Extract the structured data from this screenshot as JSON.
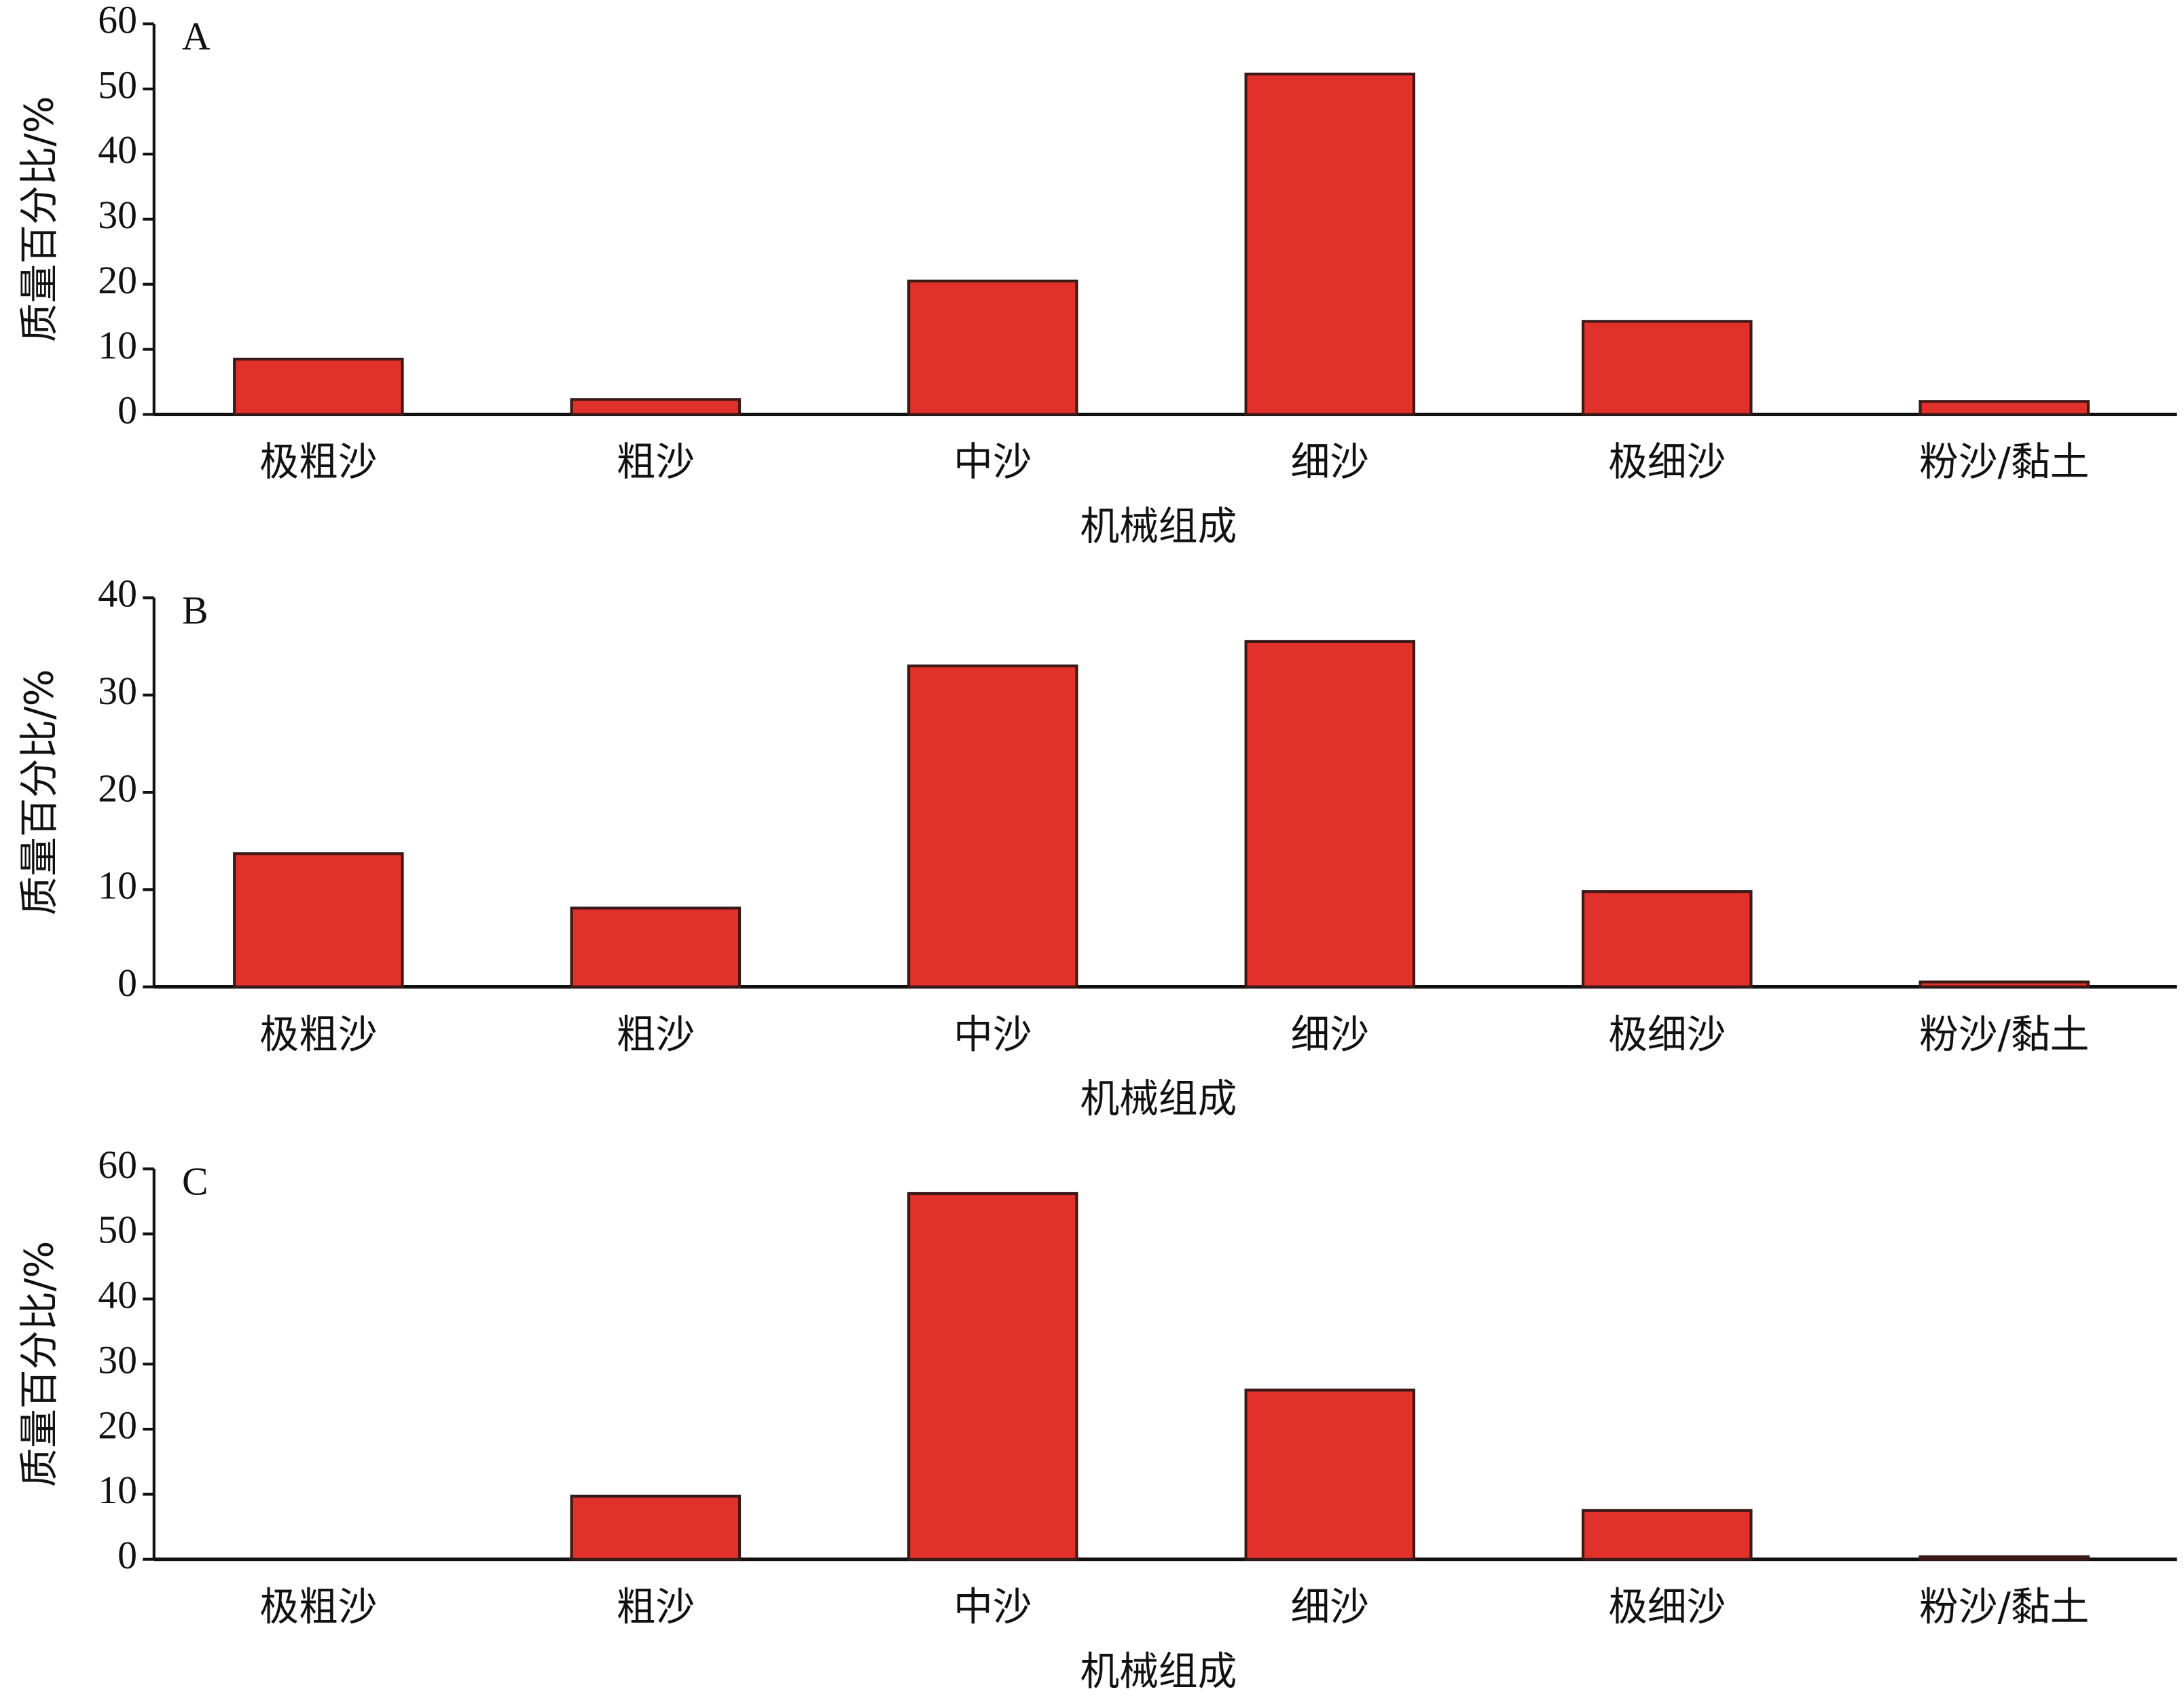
{
  "chart_data": [
    {
      "type": "bar",
      "title": "A",
      "x_label": "机械组成",
      "y_label": "质量百分比/%",
      "categories": [
        "极粗沙",
        "粗沙",
        "中沙",
        "细沙",
        "极细沙",
        "粉沙/黏土"
      ],
      "values": [
        8.5,
        2.3,
        20.5,
        52.3,
        14.3,
        2.0
      ],
      "color": "#e2302a",
      "ylim": [
        0,
        60
      ],
      "yticks": [
        0,
        10,
        20,
        30,
        40,
        50,
        60
      ]
    },
    {
      "type": "bar",
      "title": "B",
      "x_label": "机械组成",
      "y_label": "质量百分比/%",
      "categories": [
        "极粗沙",
        "粗沙",
        "中沙",
        "细沙",
        "极细沙",
        "粉沙/黏土"
      ],
      "values": [
        13.7,
        8.1,
        33.0,
        35.5,
        9.8,
        0.5
      ],
      "color": "#e2302a",
      "ylim": [
        0,
        40
      ],
      "yticks": [
        0,
        10,
        20,
        30,
        40
      ]
    },
    {
      "type": "bar",
      "title": "C",
      "x_label": "机械组成",
      "y_label": "质量百分比/%",
      "categories": [
        "极粗沙",
        "粗沙",
        "中沙",
        "细沙",
        "极细沙",
        "粉沙/黏土"
      ],
      "values": [
        0,
        9.7,
        56.2,
        26.0,
        7.5,
        0.4
      ],
      "color": "#e2302a",
      "ylim": [
        0,
        60
      ],
      "yticks": [
        0,
        10,
        20,
        30,
        40,
        50,
        60
      ]
    }
  ]
}
